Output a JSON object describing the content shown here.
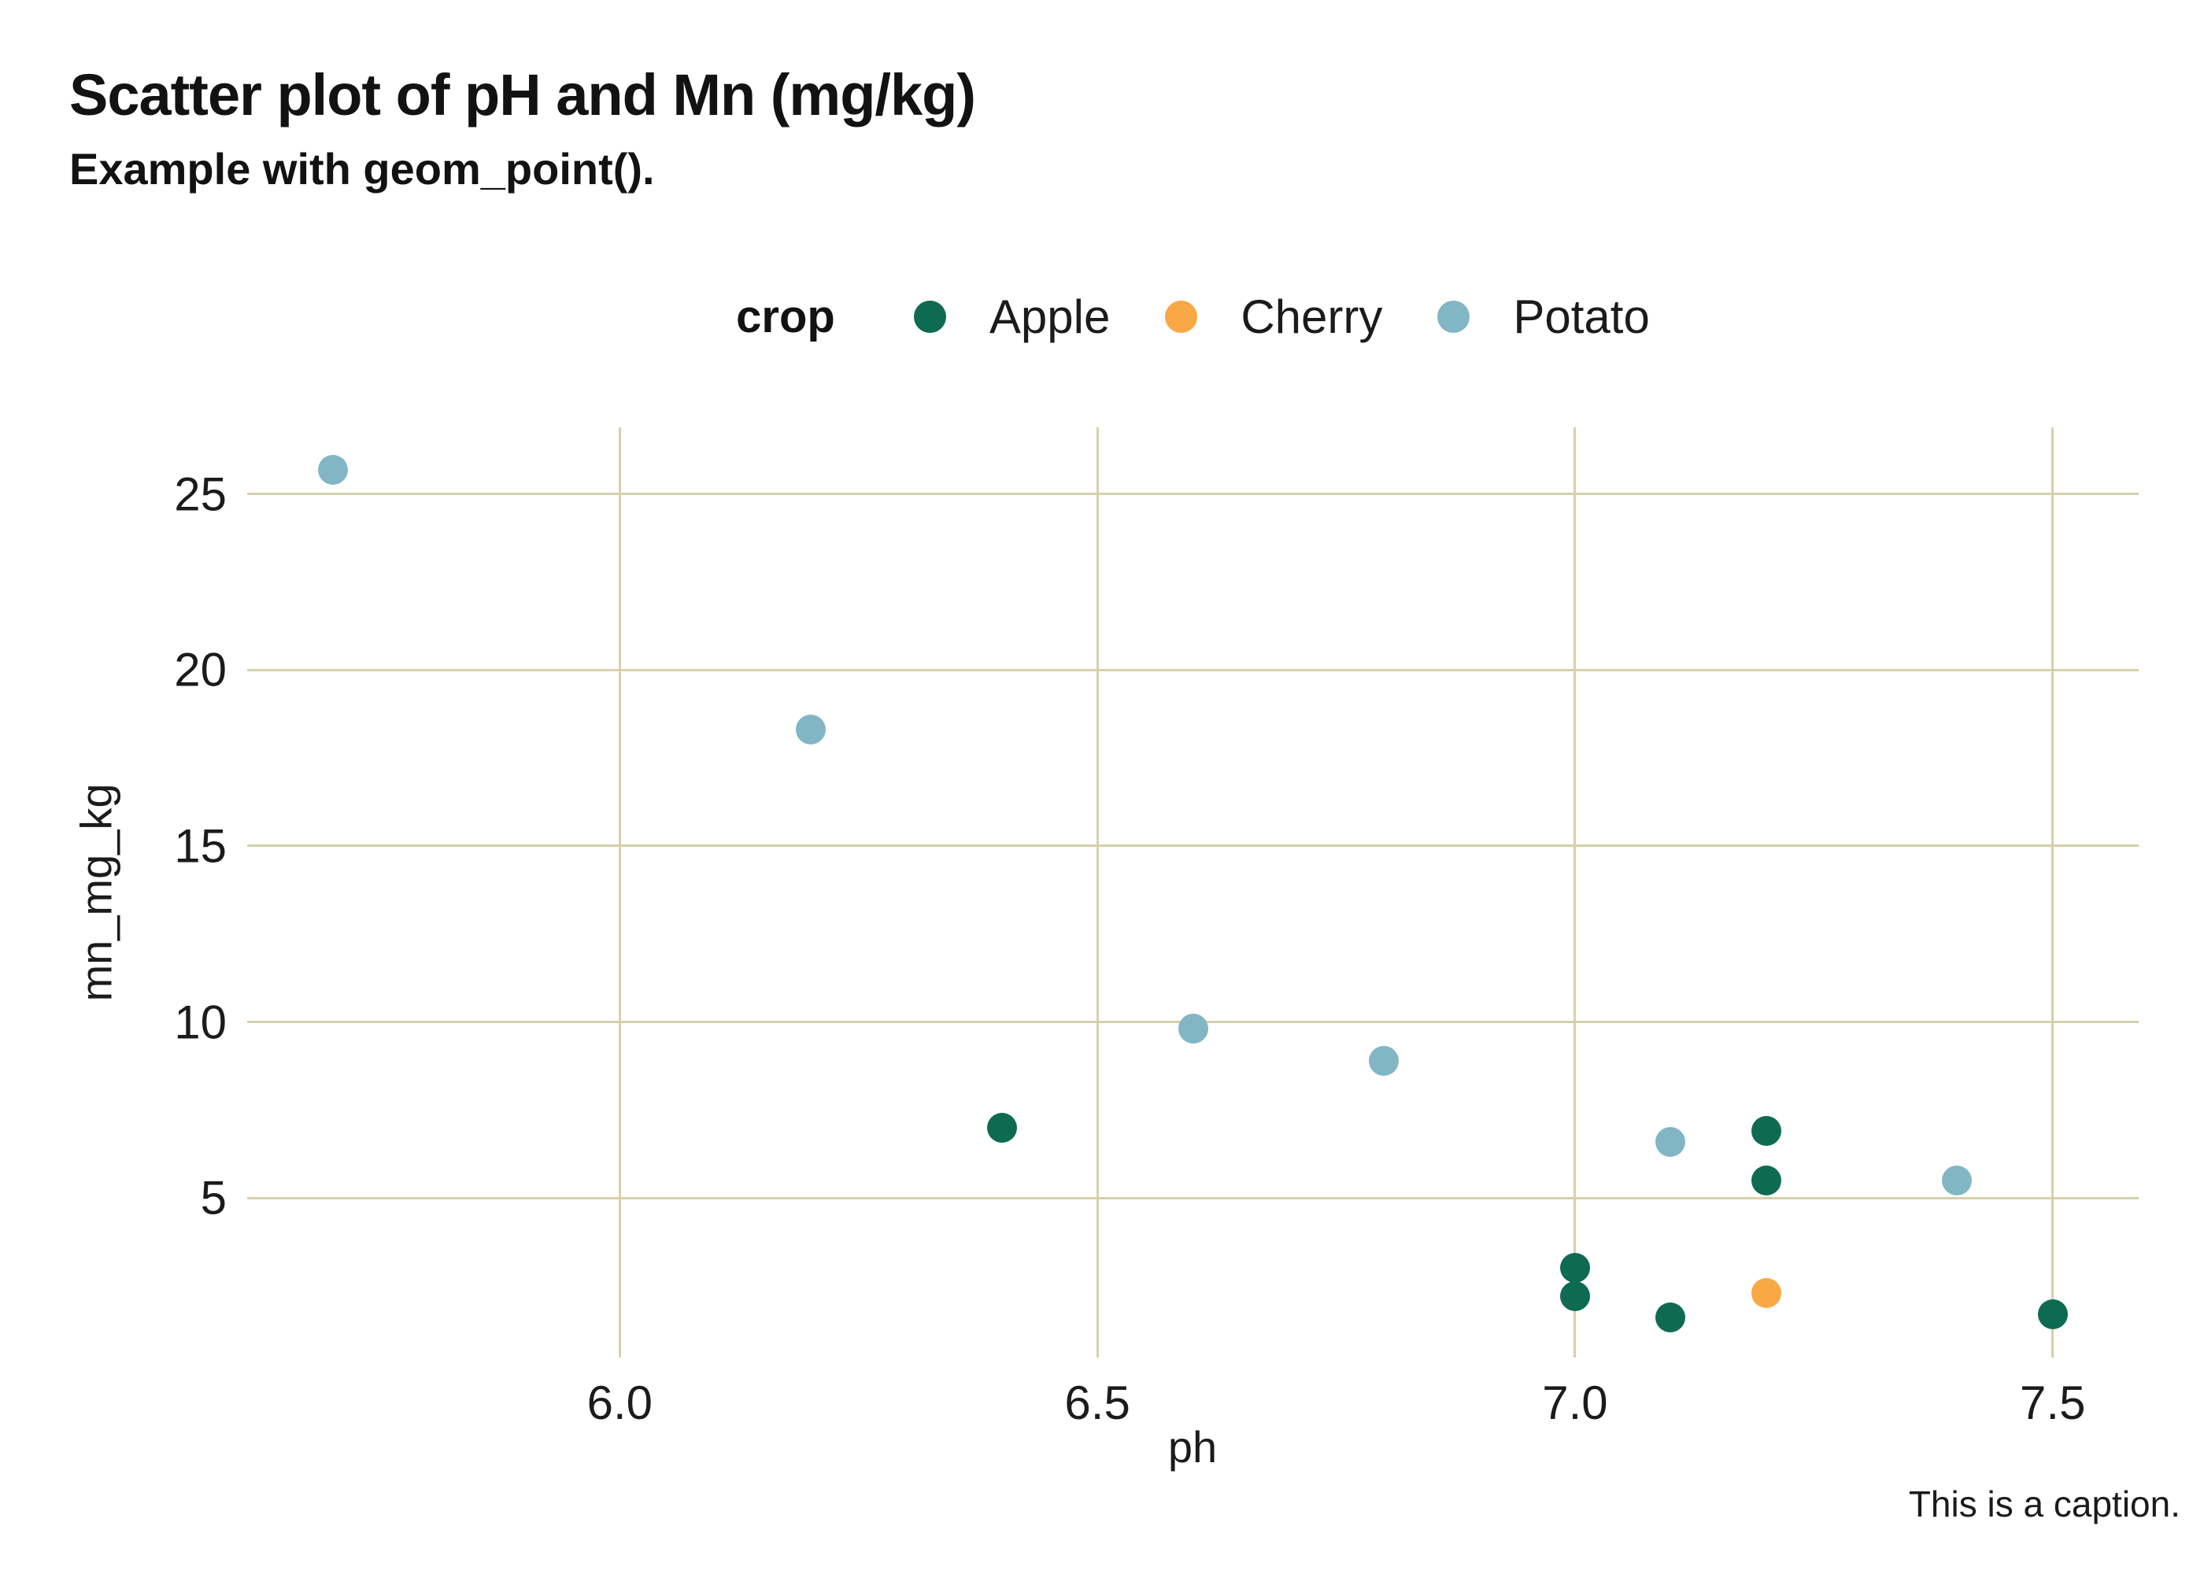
{
  "header": {
    "title": "Scatter plot of pH and Mn (mg/kg)",
    "subtitle": "Example with geom_point()."
  },
  "caption": "This is a caption.",
  "legend": {
    "title": "crop",
    "items": [
      {
        "label": "Apple",
        "color": "#0e6b52"
      },
      {
        "label": "Cherry",
        "color": "#f8a844"
      },
      {
        "label": "Potato",
        "color": "#82b6c5"
      }
    ]
  },
  "colors": {
    "gridline": "#d6d0aa",
    "text": "#1b1b1b",
    "apple": "#0e6b52",
    "cherry": "#f8a844",
    "potato": "#82b6c5"
  },
  "chart_data": {
    "type": "scatter",
    "title": "Scatter plot of pH and Mn (mg/kg)",
    "subtitle": "Example with geom_point().",
    "caption": "This is a caption.",
    "xlabel": "ph",
    "ylabel": "mn_mg_kg",
    "xlim": [
      5.61,
      7.59
    ],
    "ylim": [
      0.46,
      26.9
    ],
    "x_ticks": [
      {
        "value": 6.0,
        "label": "6.0"
      },
      {
        "value": 6.5,
        "label": "6.5"
      },
      {
        "value": 7.0,
        "label": "7.0"
      },
      {
        "value": 7.5,
        "label": "7.5"
      }
    ],
    "y_ticks": [
      {
        "value": 5,
        "label": "5"
      },
      {
        "value": 10,
        "label": "10"
      },
      {
        "value": 15,
        "label": "15"
      },
      {
        "value": 20,
        "label": "20"
      },
      {
        "value": 25,
        "label": "25"
      }
    ],
    "grid": "major-only",
    "legend_position": "top-center",
    "series": [
      {
        "name": "Apple",
        "color": "#0e6b52",
        "points": [
          [
            6.4,
            7.0
          ],
          [
            7.2,
            6.9
          ],
          [
            7.2,
            5.5
          ],
          [
            7.0,
            3.0
          ],
          [
            7.0,
            2.2
          ],
          [
            7.1,
            1.6
          ],
          [
            7.5,
            1.7
          ]
        ]
      },
      {
        "name": "Cherry",
        "color": "#f8a844",
        "points": [
          [
            7.2,
            2.3
          ]
        ]
      },
      {
        "name": "Potato",
        "color": "#82b6c5",
        "points": [
          [
            5.7,
            25.7
          ],
          [
            6.2,
            18.3
          ],
          [
            6.6,
            9.8
          ],
          [
            6.8,
            8.9
          ],
          [
            7.1,
            6.6
          ],
          [
            7.4,
            5.5
          ]
        ]
      }
    ]
  }
}
